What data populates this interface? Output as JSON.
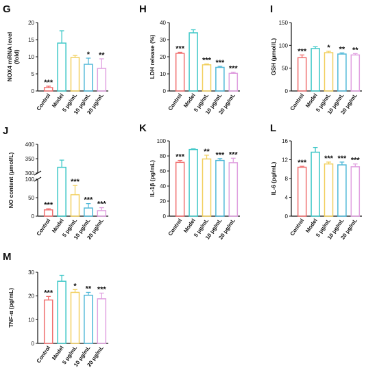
{
  "chart_data": [
    {
      "panel": "G",
      "type": "bar",
      "ylabel": "NOX4 mRNA level (fold)",
      "ylabel_lines": [
        "NOX4 mRNA level",
        "(fold)"
      ],
      "ylim": [
        0,
        20
      ],
      "yticks": [
        "0",
        "5",
        "10",
        "15",
        "20"
      ],
      "categories": [
        "Control",
        "Model",
        "5 μg/mL",
        "10 μg/mL",
        "20 μg/mL"
      ],
      "values": [
        1,
        14,
        9.8,
        7.8,
        6.6
      ],
      "errors": [
        0.4,
        3.6,
        0.6,
        1.8,
        2.8
      ],
      "significance": [
        "***",
        "",
        "",
        "*",
        "**"
      ]
    },
    {
      "panel": "H",
      "type": "bar",
      "ylabel": "LDH release (%)",
      "ylim": [
        0,
        40
      ],
      "yticks": [
        "0",
        "10",
        "20",
        "30",
        "40"
      ],
      "categories": [
        "Control",
        "Model",
        "5 μg/mL",
        "10 μg/mL",
        "20 μg/mL"
      ],
      "values": [
        22,
        34,
        15.3,
        13.8,
        10.3
      ],
      "errors": [
        0.6,
        1.8,
        0.5,
        0.6,
        0.7
      ],
      "significance": [
        "***",
        "",
        "***",
        "***",
        "***"
      ]
    },
    {
      "panel": "I",
      "type": "bar",
      "ylabel": "GSH (μmol/L)",
      "ylim": [
        0,
        150
      ],
      "yticks": [
        "0",
        "50",
        "100",
        "150"
      ],
      "categories": [
        "Control",
        "Model",
        "5 μg/mL",
        "10 μg/mL",
        "20 μg/mL"
      ],
      "values": [
        73,
        93,
        84,
        81,
        79
      ],
      "errors": [
        6,
        4,
        3,
        2.5,
        3
      ],
      "significance": [
        "***",
        "",
        "*",
        "**",
        "**"
      ]
    },
    {
      "panel": "J",
      "type": "bar",
      "ylabel": "NO content (μmol/L)",
      "broken_axis": true,
      "yticks": [
        "0",
        "50",
        "100",
        "300",
        "350",
        "400"
      ],
      "categories": [
        "Control",
        "Model",
        "5 μg/mL",
        "10 μg/mL",
        "20 μg/mL"
      ],
      "values": [
        17,
        320,
        58,
        22,
        15
      ],
      "errors": [
        3,
        25,
        25,
        12,
        8
      ],
      "significance": [
        "***",
        "",
        "***",
        "***",
        "***"
      ]
    },
    {
      "panel": "K",
      "type": "bar",
      "ylabel": "IL-1β (pg/mL)",
      "ylim": [
        0,
        100
      ],
      "yticks": [
        "0",
        "20",
        "40",
        "60",
        "80",
        "100"
      ],
      "categories": [
        "Control",
        "Model",
        "5 μg/mL",
        "10 μg/mL",
        "20 μg/mL"
      ],
      "values": [
        71.5,
        88.5,
        76,
        74,
        71
      ],
      "errors": [
        2.5,
        1,
        5,
        2.5,
        6
      ],
      "significance": [
        "***",
        "",
        "**",
        "***",
        "***"
      ]
    },
    {
      "panel": "L",
      "type": "bar",
      "ylabel": "IL-6 (pg/mL)",
      "ylim": [
        0,
        16
      ],
      "yticks": [
        "0",
        "4",
        "8",
        "12",
        "16"
      ],
      "categories": [
        "Control",
        "Model",
        "5 μg/mL",
        "10 μg/mL",
        "20 μg/mL"
      ],
      "values": [
        10.4,
        13.6,
        11.1,
        10.9,
        10.5
      ],
      "errors": [
        0.2,
        1,
        0.4,
        0.6,
        0.6
      ],
      "significance": [
        "***",
        "",
        "***",
        "***",
        "***"
      ]
    },
    {
      "panel": "M",
      "type": "bar",
      "ylabel": "TNF-α (pg/mL)",
      "ylim": [
        0,
        30
      ],
      "yticks": [
        "0",
        "10",
        "20",
        "30"
      ],
      "categories": [
        "Control",
        "Model",
        "5 μg/mL",
        "10 μg/mL",
        "20 μg/mL"
      ],
      "values": [
        18.3,
        26.2,
        21.5,
        20.3,
        18.8
      ],
      "errors": [
        1.5,
        2.5,
        1.2,
        1.2,
        2.4
      ],
      "significance": [
        "***",
        "",
        "*",
        "**",
        "***"
      ]
    }
  ],
  "colors": [
    "#f07070",
    "#40c8c8",
    "#f2d060",
    "#50b8d8",
    "#e0a0e0"
  ]
}
